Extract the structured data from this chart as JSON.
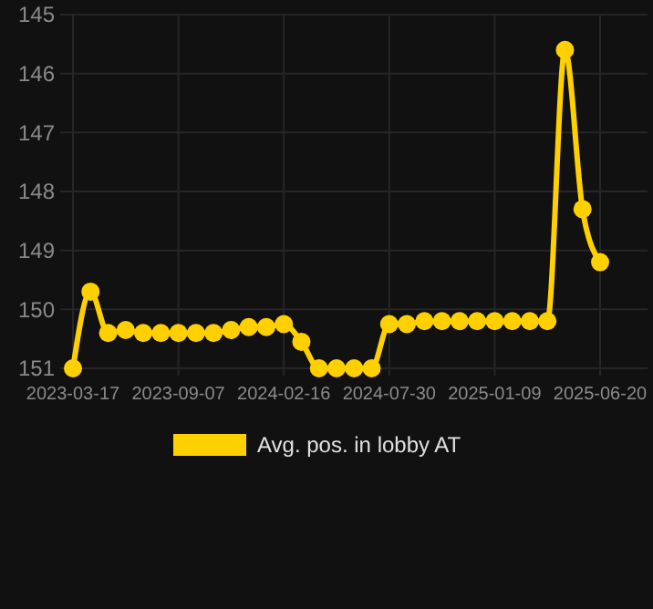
{
  "chart_data": {
    "type": "line",
    "categories": [
      "2023-03-17",
      null,
      null,
      null,
      null,
      null,
      "2023-09-07",
      null,
      null,
      null,
      null,
      null,
      "2024-02-16",
      null,
      null,
      null,
      null,
      null,
      "2024-07-30",
      null,
      null,
      null,
      null,
      null,
      "2025-01-09",
      null,
      null,
      null,
      null,
      null,
      "2025-06-20"
    ],
    "series": [
      {
        "name": "Avg. pos. in lobby AT",
        "color": "#ffd000",
        "values": [
          151,
          149.7,
          150.4,
          150.35,
          150.4,
          150.4,
          150.4,
          150.4,
          150.4,
          150.35,
          150.3,
          150.3,
          150.25,
          150.55,
          151,
          151,
          151,
          151,
          150.25,
          150.25,
          150.2,
          150.2,
          150.2,
          150.2,
          150.2,
          150.2,
          150.2,
          150.2,
          145.6,
          148.3,
          149.2
        ]
      }
    ],
    "ylim": [
      151,
      145
    ],
    "yticks": [
      145,
      146,
      147,
      148,
      149,
      150,
      151
    ],
    "grid": true,
    "legend": "bottom",
    "marker": "circle"
  }
}
